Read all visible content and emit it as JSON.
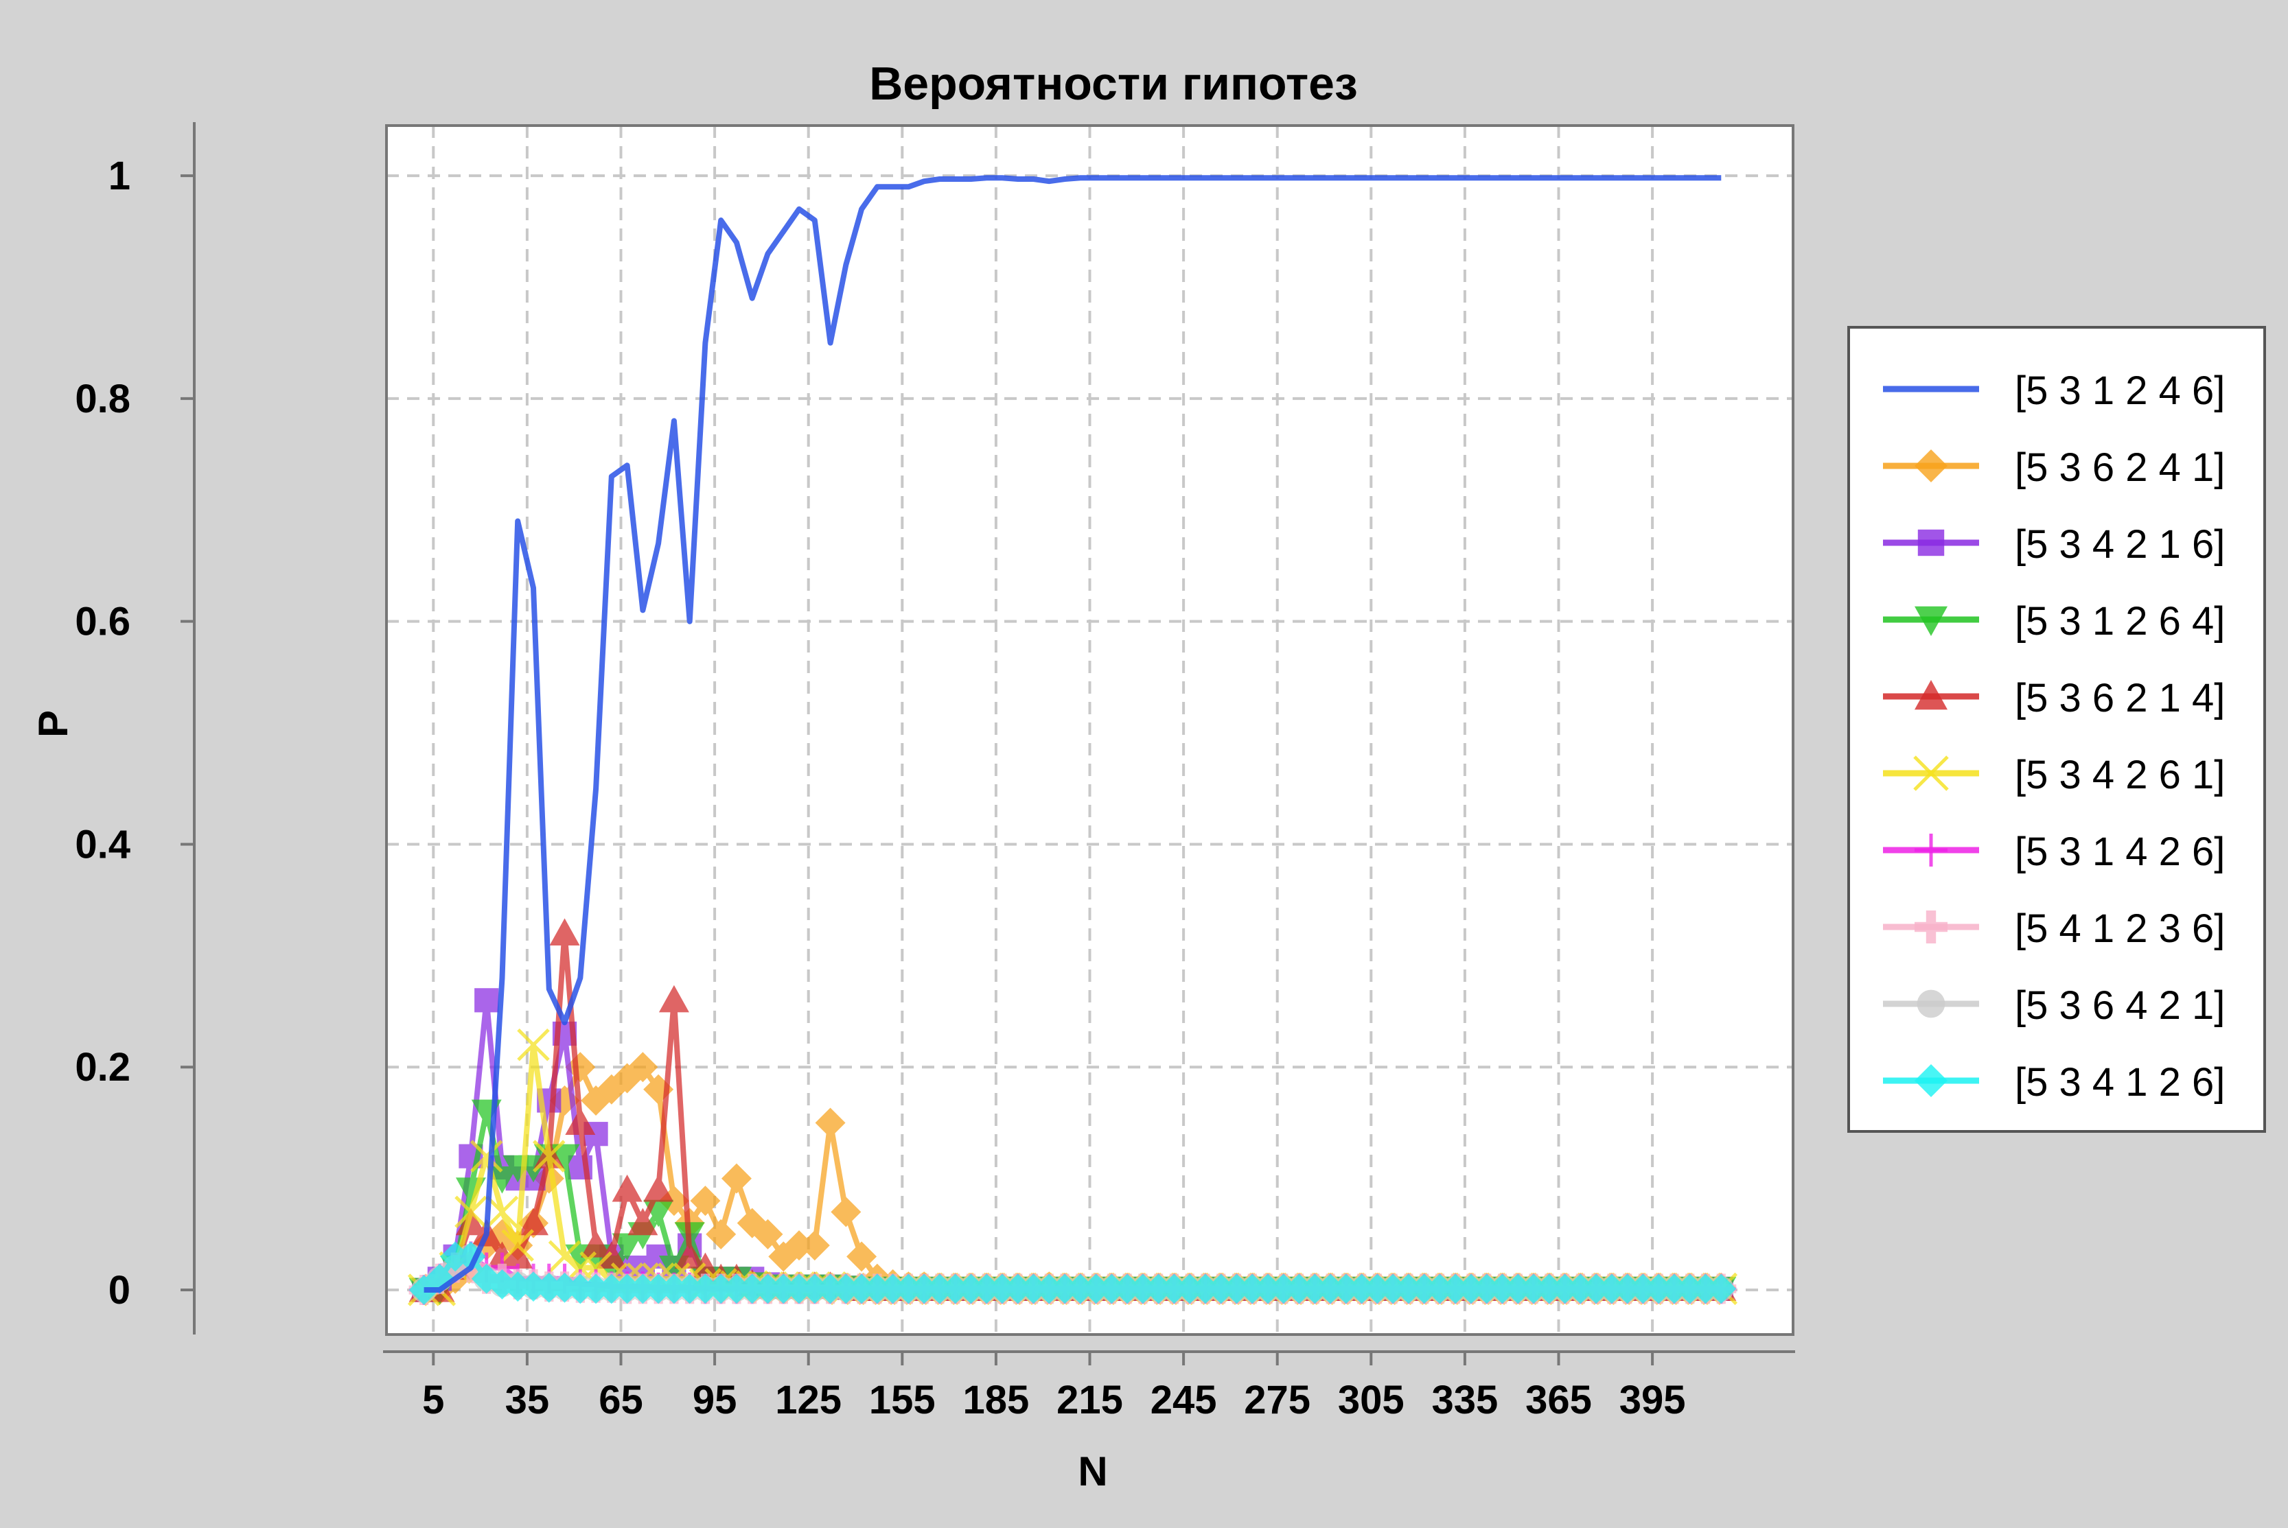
{
  "chart_data": {
    "type": "line",
    "title": "Вероятности гипотез",
    "xlabel": "N",
    "ylabel": "P",
    "xlim": [
      -10,
      440
    ],
    "ylim": [
      -0.04,
      1.045
    ],
    "xticks": [
      "5",
      "35",
      "65",
      "95",
      "125",
      "155",
      "185",
      "215",
      "245",
      "275",
      "305",
      "335",
      "365",
      "395"
    ],
    "yticks": [
      "0",
      "0.2",
      "0.4",
      "0.6",
      "0.8",
      "1"
    ],
    "grid": true,
    "legend_position": "right",
    "x": [
      2,
      7,
      12,
      17,
      22,
      27,
      32,
      37,
      42,
      47,
      52,
      57,
      62,
      67,
      72,
      77,
      82,
      87,
      92,
      97,
      102,
      107,
      112,
      117,
      122,
      127,
      132,
      137,
      142,
      147,
      152,
      157,
      162,
      167,
      172,
      177,
      182,
      187,
      192,
      197,
      202,
      207,
      212,
      217,
      222,
      227,
      232,
      237,
      242,
      247,
      252,
      257,
      262,
      267,
      272,
      277,
      282,
      287,
      292,
      297,
      302,
      307,
      312,
      317,
      322,
      327,
      332,
      337,
      342,
      347,
      352,
      357,
      362,
      367,
      372,
      377,
      382,
      387,
      392,
      397,
      402,
      407,
      412,
      417
    ],
    "series": [
      {
        "name": "[5 3 1 2 4 6]",
        "color": "#2952e6",
        "marker": "none",
        "values": [
          0,
          0,
          0.01,
          0.02,
          0.05,
          0.28,
          0.69,
          0.63,
          0.27,
          0.24,
          0.28,
          0.45,
          0.73,
          0.74,
          0.61,
          0.67,
          0.78,
          0.6,
          0.85,
          0.96,
          0.94,
          0.89,
          0.93,
          0.95,
          0.97,
          0.96,
          0.85,
          0.92,
          0.97,
          0.99,
          0.99,
          0.99,
          0.995,
          0.997,
          0.997,
          0.997,
          0.998,
          0.998,
          0.997,
          0.997,
          0.995,
          0.997,
          0.998,
          0.998,
          0.998,
          0.998,
          0.998,
          0.998,
          0.998,
          0.998,
          0.998,
          0.998,
          0.998,
          0.998,
          0.998,
          0.998,
          0.998,
          0.998,
          0.998,
          0.998,
          0.998,
          0.998,
          0.998,
          0.998,
          0.998,
          0.998,
          0.998,
          0.998,
          0.998,
          0.998,
          0.998,
          0.998,
          0.998,
          0.998,
          0.998,
          0.998,
          0.998,
          0.998,
          0.998,
          0.998,
          0.998,
          0.998,
          0.998,
          0.998
        ]
      },
      {
        "name": "[5 3 6 2 4 1]",
        "color": "#f7a21b",
        "marker": "diamond",
        "values": [
          0,
          0,
          0.01,
          0.02,
          0.04,
          0.05,
          0.04,
          0.06,
          0.1,
          0.17,
          0.2,
          0.17,
          0.18,
          0.19,
          0.2,
          0.18,
          0.08,
          0.06,
          0.08,
          0.05,
          0.1,
          0.06,
          0.05,
          0.03,
          0.04,
          0.04,
          0.15,
          0.07,
          0.03,
          0.01,
          0.005,
          0.003,
          0.003,
          0.002,
          0.002,
          0.002,
          0.002,
          0.002,
          0.002,
          0.002,
          0.003,
          0.002,
          0.002,
          0.002,
          0.002,
          0.002,
          0.002,
          0.002,
          0.002,
          0.002,
          0.002,
          0.002,
          0.002,
          0.002,
          0.002,
          0.002,
          0.002,
          0.002,
          0.002,
          0.002,
          0.002,
          0.002,
          0.002,
          0.002,
          0.002,
          0.002,
          0.002,
          0.002,
          0.002,
          0.002,
          0.002,
          0.002,
          0.002,
          0.002,
          0.002,
          0.002,
          0.002,
          0.002,
          0.002,
          0.002,
          0.002,
          0.002,
          0.002,
          0.002
        ]
      },
      {
        "name": "[5 3 4 2 1 6]",
        "color": "#8a2be2",
        "marker": "square",
        "values": [
          0,
          0.01,
          0.03,
          0.12,
          0.26,
          0.11,
          0.1,
          0.1,
          0.17,
          0.23,
          0.11,
          0.14,
          0.03,
          0.02,
          0.02,
          0.03,
          0.02,
          0.04,
          0.01,
          0.01,
          0.01,
          0.01,
          0.005,
          0.003,
          0.003,
          0.003,
          0.003,
          0.002,
          0.001,
          0.001,
          0.001,
          0.001,
          0.001,
          0.001,
          0.001,
          0.001,
          0.001,
          0.001,
          0.001,
          0.001,
          0.001,
          0.001,
          0.001,
          0.001,
          0.001,
          0.001,
          0.001,
          0.001,
          0.001,
          0.001,
          0.001,
          0.001,
          0.001,
          0.001,
          0.001,
          0.001,
          0.001,
          0.001,
          0.001,
          0.001,
          0.001,
          0.001,
          0.001,
          0.001,
          0.001,
          0.001,
          0.001,
          0.001,
          0.001,
          0.001,
          0.001,
          0.001,
          0.001,
          0.001,
          0.001,
          0.001,
          0.001,
          0.001,
          0.001,
          0.001,
          0.001,
          0.001,
          0.001,
          0.001
        ]
      },
      {
        "name": "[5 3 1 2 6 4]",
        "color": "#22c422",
        "marker": "triangle-down",
        "values": [
          0,
          0,
          0.02,
          0.09,
          0.16,
          0.1,
          0.11,
          0.11,
          0.12,
          0.12,
          0.03,
          0.03,
          0.02,
          0.04,
          0.05,
          0.07,
          0.02,
          0.05,
          0.01,
          0.01,
          0.01,
          0.005,
          0.003,
          0.003,
          0.003,
          0.003,
          0.003,
          0.002,
          0.001,
          0.001,
          0.001,
          0.001,
          0.001,
          0.001,
          0.001,
          0.001,
          0.001,
          0.001,
          0.001,
          0.001,
          0.001,
          0.001,
          0.001,
          0.001,
          0.001,
          0.001,
          0.001,
          0.001,
          0.001,
          0.001,
          0.001,
          0.001,
          0.001,
          0.001,
          0.001,
          0.001,
          0.001,
          0.001,
          0.001,
          0.001,
          0.001,
          0.001,
          0.001,
          0.001,
          0.001,
          0.001,
          0.001,
          0.001,
          0.001,
          0.001,
          0.001,
          0.001,
          0.001,
          0.001,
          0.001,
          0.001,
          0.001,
          0.001,
          0.001,
          0.001,
          0.001,
          0.001,
          0.001,
          0.001
        ]
      },
      {
        "name": "[5 3 6 2 1 4]",
        "color": "#d42a2a",
        "marker": "triangle-up",
        "values": [
          0,
          0,
          0.02,
          0.06,
          0.05,
          0.03,
          0.03,
          0.06,
          0.12,
          0.32,
          0.15,
          0.04,
          0.03,
          0.09,
          0.06,
          0.09,
          0.26,
          0.03,
          0.02,
          0.01,
          0.01,
          0.005,
          0.003,
          0.003,
          0.003,
          0.003,
          0.003,
          0.002,
          0.001,
          0.001,
          0.001,
          0.001,
          0.001,
          0.001,
          0.001,
          0.001,
          0.001,
          0.001,
          0.001,
          0.001,
          0.001,
          0.001,
          0.001,
          0.001,
          0.001,
          0.001,
          0.001,
          0.001,
          0.001,
          0.001,
          0.001,
          0.001,
          0.001,
          0.001,
          0.001,
          0.001,
          0.001,
          0.001,
          0.001,
          0.001,
          0.001,
          0.001,
          0.001,
          0.001,
          0.001,
          0.001,
          0.001,
          0.001,
          0.001,
          0.001,
          0.001,
          0.001,
          0.001,
          0.001,
          0.001,
          0.001,
          0.001,
          0.001,
          0.001,
          0.001,
          0.001,
          0.001,
          0.001,
          0.001
        ]
      },
      {
        "name": "[5 3 4 2 6 1]",
        "color": "#f5e11c",
        "marker": "x",
        "values": [
          0,
          0,
          0.02,
          0.07,
          0.12,
          0.07,
          0.04,
          0.22,
          0.12,
          0.03,
          0.02,
          0.02,
          0.01,
          0.01,
          0.01,
          0.01,
          0.01,
          0.01,
          0.005,
          0.005,
          0.003,
          0.003,
          0.002,
          0.002,
          0.002,
          0.002,
          0.002,
          0.001,
          0.001,
          0.001,
          0.001,
          0.001,
          0.001,
          0.001,
          0.001,
          0.001,
          0.001,
          0.001,
          0.001,
          0.001,
          0.001,
          0.001,
          0.001,
          0.001,
          0.001,
          0.001,
          0.001,
          0.001,
          0.001,
          0.001,
          0.001,
          0.001,
          0.001,
          0.001,
          0.001,
          0.001,
          0.001,
          0.001,
          0.001,
          0.001,
          0.001,
          0.001,
          0.001,
          0.001,
          0.001,
          0.001,
          0.001,
          0.001,
          0.001,
          0.001,
          0.001,
          0.001,
          0.001,
          0.001,
          0.001,
          0.001,
          0.001,
          0.001,
          0.001,
          0.001,
          0.001,
          0.001,
          0.001,
          0.001
        ]
      },
      {
        "name": "[5 3 1 4 2 6]",
        "color": "#ee22e6",
        "marker": "plus",
        "values": [
          0,
          0.01,
          0.02,
          0.03,
          0.02,
          0.02,
          0.01,
          0.01,
          0.01,
          0.01,
          0.005,
          0.005,
          0.003,
          0.003,
          0.003,
          0.002,
          0.002,
          0.002,
          0.001,
          0.001,
          0.001,
          0.001,
          0.001,
          0.001,
          0.001,
          0.001,
          0.001,
          0.001,
          0.001,
          0.001,
          0.001,
          0.001,
          0.001,
          0.001,
          0.001,
          0.001,
          0.001,
          0.001,
          0.001,
          0.001,
          0.001,
          0.001,
          0.001,
          0.001,
          0.001,
          0.001,
          0.001,
          0.001,
          0.001,
          0.001,
          0.001,
          0.001,
          0.001,
          0.001,
          0.001,
          0.001,
          0.001,
          0.001,
          0.001,
          0.001,
          0.001,
          0.001,
          0.001,
          0.001,
          0.001,
          0.001,
          0.001,
          0.001,
          0.001,
          0.001,
          0.001,
          0.001,
          0.001,
          0.001,
          0.001,
          0.001,
          0.001,
          0.001,
          0.001,
          0.001,
          0.001,
          0.001,
          0.001,
          0.001
        ]
      },
      {
        "name": "[5 4 1 2 3 6]",
        "color": "#f7b2c9",
        "marker": "square-plus",
        "values": [
          0,
          0.01,
          0.02,
          0.02,
          0.01,
          0.01,
          0.005,
          0.005,
          0.003,
          0.003,
          0.002,
          0.002,
          0.002,
          0.001,
          0.001,
          0.001,
          0.001,
          0.001,
          0.001,
          0.001,
          0.001,
          0.001,
          0.001,
          0.001,
          0.001,
          0.001,
          0.001,
          0.001,
          0.001,
          0.001,
          0.001,
          0.001,
          0.001,
          0.001,
          0.001,
          0.001,
          0.001,
          0.001,
          0.001,
          0.001,
          0.001,
          0.001,
          0.001,
          0.001,
          0.001,
          0.001,
          0.001,
          0.001,
          0.001,
          0.001,
          0.001,
          0.001,
          0.001,
          0.001,
          0.001,
          0.001,
          0.001,
          0.001,
          0.001,
          0.001,
          0.001,
          0.001,
          0.001,
          0.001,
          0.001,
          0.001,
          0.001,
          0.001,
          0.001,
          0.001,
          0.001,
          0.001,
          0.001,
          0.001,
          0.001,
          0.001,
          0.001,
          0.001,
          0.001,
          0.001,
          0.001,
          0.001,
          0.001,
          0.001
        ]
      },
      {
        "name": "[5 3 6 4 2 1]",
        "color": "#cccccc",
        "marker": "circle",
        "values": [
          0,
          0.01,
          0.02,
          0.03,
          0.01,
          0.005,
          0.005,
          0.003,
          0.003,
          0.002,
          0.002,
          0.001,
          0.001,
          0.001,
          0.001,
          0.001,
          0.001,
          0.001,
          0.001,
          0.001,
          0.001,
          0.001,
          0.001,
          0.001,
          0.001,
          0.001,
          0.001,
          0.001,
          0.001,
          0.001,
          0.001,
          0.001,
          0.001,
          0.001,
          0.001,
          0.001,
          0.001,
          0.001,
          0.001,
          0.001,
          0.001,
          0.001,
          0.001,
          0.001,
          0.001,
          0.001,
          0.001,
          0.001,
          0.001,
          0.001,
          0.001,
          0.001,
          0.001,
          0.001,
          0.001,
          0.001,
          0.001,
          0.001,
          0.001,
          0.001,
          0.001,
          0.001,
          0.001,
          0.001,
          0.001,
          0.001,
          0.001,
          0.001,
          0.001,
          0.001,
          0.001,
          0.001,
          0.001,
          0.001,
          0.001,
          0.001,
          0.001,
          0.001,
          0.001,
          0.001,
          0.001,
          0.001,
          0.001,
          0.001
        ]
      },
      {
        "name": "[5 3 4 1 2 6]",
        "color": "#1cf2f2",
        "marker": "diamond",
        "values": [
          0,
          0.01,
          0.03,
          0.03,
          0.01,
          0.005,
          0.003,
          0.003,
          0.002,
          0.002,
          0.001,
          0.001,
          0.001,
          0.001,
          0.001,
          0.001,
          0.001,
          0.001,
          0.001,
          0.001,
          0.001,
          0.001,
          0.001,
          0.001,
          0.001,
          0.001,
          0.001,
          0.001,
          0.001,
          0.001,
          0.001,
          0.001,
          0.001,
          0.001,
          0.001,
          0.001,
          0.001,
          0.001,
          0.001,
          0.001,
          0.001,
          0.001,
          0.001,
          0.001,
          0.001,
          0.001,
          0.001,
          0.001,
          0.001,
          0.001,
          0.001,
          0.001,
          0.001,
          0.001,
          0.001,
          0.001,
          0.001,
          0.001,
          0.001,
          0.001,
          0.001,
          0.001,
          0.001,
          0.001,
          0.001,
          0.001,
          0.001,
          0.001,
          0.001,
          0.001,
          0.001,
          0.001,
          0.001,
          0.001,
          0.001,
          0.001,
          0.001,
          0.001,
          0.001,
          0.001,
          0.001,
          0.001,
          0.001,
          0.001
        ]
      }
    ]
  }
}
